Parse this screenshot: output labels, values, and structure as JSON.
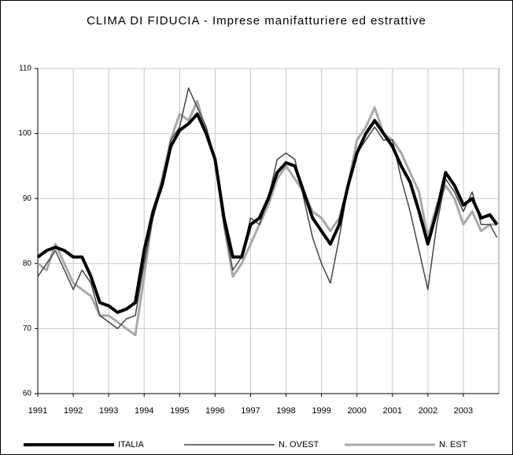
{
  "chart_data": {
    "type": "line",
    "title": "CLIMA DI FIDUCIA - Imprese manifatturiere ed estrattive",
    "x": [
      1991,
      1991.25,
      1991.5,
      1991.75,
      1992,
      1992.25,
      1992.5,
      1992.75,
      1993,
      1993.25,
      1993.5,
      1993.75,
      1994,
      1994.25,
      1994.5,
      1994.75,
      1995,
      1995.25,
      1995.5,
      1995.75,
      1996,
      1996.25,
      1996.5,
      1996.75,
      1997,
      1997.25,
      1997.5,
      1997.75,
      1998,
      1998.25,
      1998.5,
      1998.75,
      1999,
      1999.25,
      1999.5,
      1999.75,
      2000,
      2000.25,
      2000.5,
      2000.75,
      2001,
      2001.25,
      2001.5,
      2001.75,
      2002,
      2002.25,
      2002.5,
      2002.75,
      2003,
      2003.25,
      2003.5,
      2003.75,
      2003.95
    ],
    "series": [
      {
        "name": "ITALIA",
        "color": "#000000",
        "width": 4,
        "values": [
          81,
          82,
          82.5,
          82,
          81,
          81,
          78,
          74,
          73.5,
          72.5,
          73,
          74,
          82,
          88,
          92,
          98,
          100.5,
          101.5,
          103,
          100,
          96,
          87,
          81,
          81,
          86,
          87,
          90,
          94,
          95.5,
          95,
          91,
          87,
          85,
          83,
          86,
          92,
          97,
          100,
          102,
          100,
          98,
          95,
          92.5,
          88,
          83,
          88,
          94,
          92,
          89,
          90,
          87,
          87.5,
          86
        ]
      },
      {
        "name": "N. OVEST",
        "color": "#444444",
        "width": 1.5,
        "values": [
          78,
          80,
          82,
          79,
          76,
          79,
          77,
          72,
          71,
          70,
          71.5,
          72,
          80,
          87,
          92,
          99,
          101,
          107,
          104,
          101,
          96,
          86,
          79,
          81,
          87,
          86,
          90,
          96,
          97,
          96,
          90,
          84,
          80,
          77,
          84,
          92,
          97,
          99,
          101,
          99,
          99,
          93,
          88,
          82,
          76,
          86,
          93,
          91,
          88,
          91,
          86,
          86,
          84
        ]
      },
      {
        "name": "N. EST",
        "color": "#a8a8a8",
        "width": 3,
        "values": [
          80,
          79,
          83,
          80,
          77,
          76,
          75,
          72,
          72,
          71,
          70,
          69,
          78,
          88,
          93,
          99,
          103,
          102,
          105,
          100,
          96,
          86,
          78,
          80,
          83,
          86,
          89,
          93,
          95,
          93,
          91,
          88,
          87,
          85,
          87,
          92,
          99,
          101,
          104,
          100,
          99,
          97,
          94,
          91,
          84,
          89,
          92,
          90,
          86,
          88,
          85,
          86,
          86
        ]
      }
    ],
    "xlim": [
      1991,
      2004
    ],
    "xticks": [
      1991,
      1992,
      1993,
      1994,
      1995,
      1996,
      1997,
      1998,
      1999,
      2000,
      2001,
      2002,
      2003
    ],
    "ylim": [
      60,
      110
    ],
    "yticks": [
      60,
      70,
      80,
      90,
      100,
      110
    ],
    "grid": true,
    "legend": "bottom"
  }
}
